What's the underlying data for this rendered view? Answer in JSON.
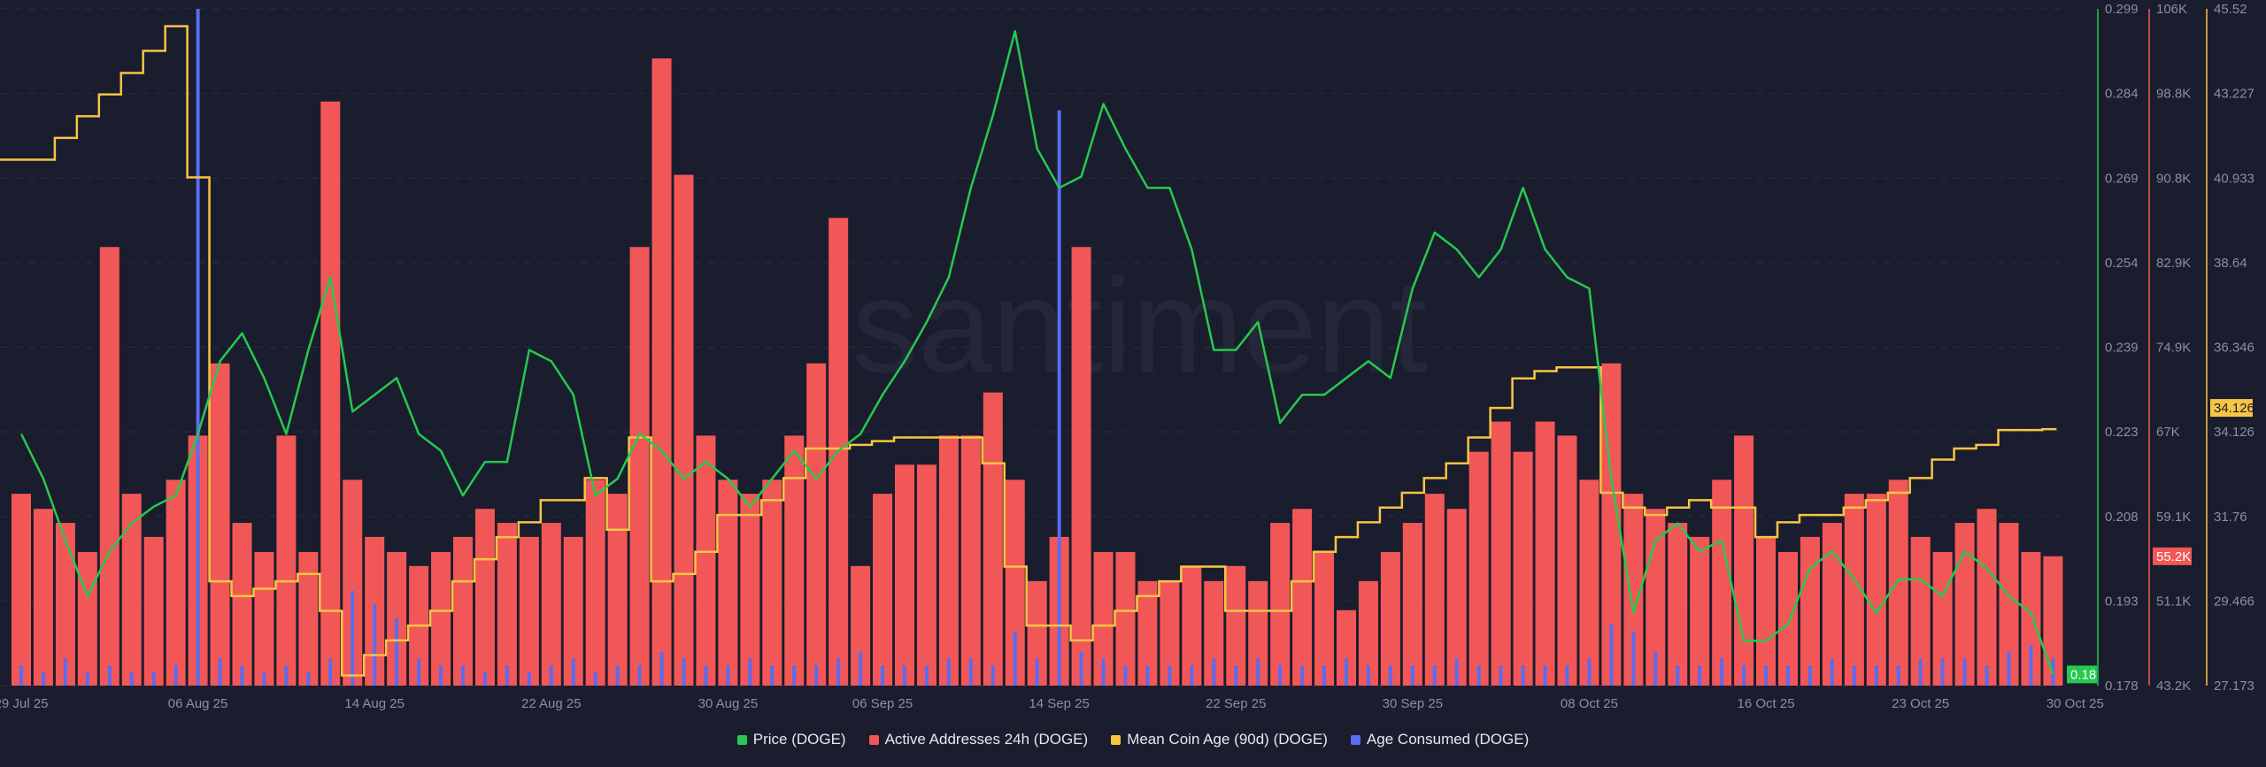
{
  "watermark": "santiment",
  "colors": {
    "background": "#1a1d2d",
    "price": "#26c94f",
    "active_addresses": "#f25757",
    "mean_coin_age": "#f7c544",
    "age_consumed": "#5a6cf0",
    "grid": "#2a2e40",
    "axis_text": "#8a8fa3"
  },
  "chart_data": {
    "type": "bar+line",
    "x_start": "29 Jul 25",
    "x_ticks": [
      "29 Jul 25",
      "06 Aug 25",
      "14 Aug 25",
      "22 Aug 25",
      "30 Aug 25",
      "06 Sep 25",
      "14 Sep 25",
      "22 Sep 25",
      "30 Sep 25",
      "08 Oct 25",
      "16 Oct 25",
      "23 Oct 25",
      "30 Oct 25"
    ],
    "x_tick_days": [
      0,
      8,
      16,
      24,
      32,
      39,
      47,
      55,
      63,
      71,
      79,
      86,
      93
    ],
    "grid": true,
    "legend_position": "bottom",
    "axes": [
      {
        "series": "Price (DOGE)",
        "ylim": [
          0.178,
          0.299
        ],
        "ticks": [
          "0.299",
          "0.284",
          "0.269",
          "0.254",
          "0.239",
          "0.223",
          "0.208",
          "0.193",
          "0.178"
        ],
        "last_value": "0.18"
      },
      {
        "series": "Active Addresses 24h (DOGE)",
        "ylim": [
          43200,
          106000
        ],
        "ticks": [
          "106K",
          "98.8K",
          "90.8K",
          "82.9K",
          "74.9K",
          "67K",
          "59.1K",
          "51.1K",
          "43.2K"
        ],
        "last_value": "55.2K"
      },
      {
        "series": "Mean Coin Age (90d) (DOGE)",
        "ylim": [
          27.173,
          45.52
        ],
        "ticks": [
          "45.52",
          "43.227",
          "40.933",
          "38.64",
          "36.346",
          "34.126",
          "31.76",
          "29.466",
          "27.173"
        ],
        "last_value": "34.126"
      }
    ],
    "series": [
      {
        "name": "Price (DOGE)",
        "type": "line",
        "values": [
          0.223,
          0.215,
          0.204,
          0.194,
          0.202,
          0.207,
          0.21,
          0.212,
          0.223,
          0.236,
          0.241,
          0.233,
          0.223,
          0.238,
          0.251,
          0.227,
          0.23,
          0.233,
          0.223,
          0.22,
          0.212,
          0.218,
          0.218,
          0.238,
          0.236,
          0.23,
          0.212,
          0.215,
          0.223,
          0.22,
          0.215,
          0.218,
          0.215,
          0.21,
          0.215,
          0.22,
          0.215,
          0.22,
          0.223,
          0.23,
          0.236,
          0.243,
          0.251,
          0.267,
          0.28,
          0.295,
          0.274,
          0.267,
          0.269,
          0.282,
          0.274,
          0.267,
          0.267,
          0.256,
          0.238,
          0.238,
          0.243,
          0.225,
          0.23,
          0.23,
          0.233,
          0.236,
          0.233,
          0.249,
          0.259,
          0.256,
          0.251,
          0.256,
          0.267,
          0.256,
          0.251,
          0.249,
          0.215,
          0.191,
          0.204,
          0.207,
          0.202,
          0.204,
          0.186,
          0.186,
          0.189,
          0.199,
          0.202,
          0.197,
          0.191,
          0.197,
          0.197,
          0.194,
          0.202,
          0.199,
          0.194,
          0.191,
          0.18
        ]
      },
      {
        "name": "Active Addresses 24h (DOGE)",
        "type": "bar",
        "values": [
          61000,
          59600,
          58300,
          55600,
          83900,
          61000,
          57000,
          62300,
          66400,
          73100,
          58300,
          55600,
          66400,
          55600,
          97400,
          62300,
          57000,
          55600,
          54300,
          55600,
          57000,
          59600,
          58300,
          57000,
          58300,
          57000,
          62300,
          61000,
          83900,
          101400,
          90600,
          66400,
          62300,
          61000,
          62300,
          66400,
          73100,
          86600,
          54300,
          61000,
          63700,
          63700,
          66400,
          66400,
          70400,
          62300,
          52900,
          57000,
          83900,
          55600,
          55600,
          52900,
          52900,
          54300,
          52900,
          54300,
          52900,
          58300,
          59600,
          55600,
          50200,
          52900,
          55600,
          58300,
          61000,
          59600,
          64900,
          67700,
          64900,
          67700,
          66400,
          62300,
          73100,
          61000,
          59600,
          58300,
          57000,
          62300,
          66400,
          57000,
          55600,
          57000,
          58300,
          61000,
          61000,
          62300,
          57000,
          55600,
          58300,
          59600,
          58300,
          55600,
          55200
        ]
      },
      {
        "name": "Mean Coin Age (90d) (DOGE)",
        "type": "step",
        "values": [
          41.43,
          41.43,
          42.02,
          42.61,
          43.2,
          43.78,
          44.38,
          45.05,
          40.95,
          30.0,
          29.6,
          29.8,
          30.0,
          30.2,
          29.2,
          27.45,
          28.0,
          28.4,
          28.8,
          29.2,
          30.0,
          30.6,
          31.2,
          31.6,
          32.2,
          32.2,
          32.8,
          31.4,
          33.9,
          30.0,
          30.2,
          30.8,
          31.8,
          31.8,
          32.2,
          32.8,
          33.6,
          33.6,
          33.7,
          33.8,
          33.9,
          33.9,
          33.9,
          33.9,
          33.2,
          30.4,
          28.8,
          28.8,
          28.4,
          28.8,
          29.2,
          29.6,
          30.0,
          30.4,
          30.4,
          29.2,
          29.2,
          29.2,
          30.0,
          30.8,
          31.2,
          31.6,
          32.0,
          32.4,
          32.8,
          33.2,
          33.9,
          34.7,
          35.5,
          35.7,
          35.8,
          35.8,
          32.4,
          32.0,
          31.8,
          32.0,
          32.2,
          32.0,
          32.0,
          31.2,
          31.6,
          31.8,
          31.8,
          32.0,
          32.2,
          32.4,
          32.8,
          33.3,
          33.6,
          33.7,
          34.1,
          34.1,
          34.126
        ]
      },
      {
        "name": "Age Consumed (DOGE)",
        "type": "bar",
        "values": [
          3,
          2,
          4,
          2,
          3,
          2,
          2,
          3,
          100,
          4,
          3,
          2,
          3,
          2,
          4,
          14,
          12,
          10,
          4,
          3,
          3,
          2,
          3,
          2,
          3,
          4,
          2,
          3,
          3,
          5,
          4,
          3,
          3,
          4,
          3,
          3,
          3,
          4,
          5,
          3,
          3,
          3,
          4,
          4,
          3,
          8,
          4,
          85,
          5,
          4,
          3,
          3,
          3,
          3,
          4,
          3,
          4,
          3,
          3,
          3,
          4,
          3,
          3,
          3,
          3,
          4,
          3,
          3,
          3,
          3,
          3,
          4,
          9,
          8,
          5,
          3,
          3,
          4,
          3,
          3,
          3,
          3,
          4,
          3,
          3,
          3,
          4,
          4,
          4,
          3,
          5,
          6,
          4
        ]
      }
    ]
  }
}
